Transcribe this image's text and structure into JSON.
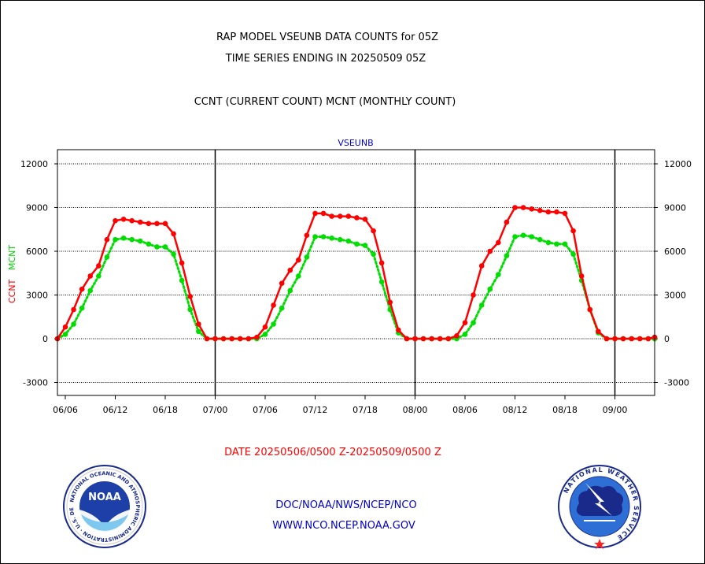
{
  "header": {
    "title_line1": "RAP MODEL VSEUNB DATA COUNTS for 05Z",
    "title_line2": "TIME SERIES ENDING IN 20250509 05Z",
    "subtitle": "CCNT (CURRENT COUNT) MCNT (MONTHLY COUNT)"
  },
  "footer": {
    "date_range": "DATE 20250506/0500 Z-20250509/0500 Z",
    "org_path": "DOC/NOAA/NWS/NCEP/NCO",
    "website": "WWW.NCO.NCEP.NOAA.GOV"
  },
  "logos": {
    "noaa": {
      "center_text": "NOAA",
      "ring_text": "NATIONAL OCEANIC AND ATMOSPHERIC ADMINISTRATION · U.S. DEPARTMENT OF COMMERCE"
    },
    "nws": {
      "ring_text": "NATIONAL WEATHER SERVICE"
    }
  },
  "chart_data": {
    "type": "line",
    "title": "VSEUNB",
    "ylabel_series1": "CCNT",
    "ylabel_series2": "MCNT",
    "ylim": [
      -3800,
      13000
    ],
    "yticks": [
      -3000,
      0,
      3000,
      6000,
      9000,
      12000
    ],
    "ytick_labels": [
      "-3000",
      "0",
      "3000",
      "6000",
      "9000",
      "12000"
    ],
    "xlim": [
      0,
      72
    ],
    "xticks": [
      {
        "x": 0,
        "label": "06/06"
      },
      {
        "x": 6,
        "label": "06/12"
      },
      {
        "x": 12,
        "label": "06/18"
      },
      {
        "x": 18,
        "label": "07/00"
      },
      {
        "x": 24,
        "label": "07/06"
      },
      {
        "x": 30,
        "label": "07/12"
      },
      {
        "x": 36,
        "label": "07/18"
      },
      {
        "x": 42,
        "label": "08/00"
      },
      {
        "x": 48,
        "label": "08/06"
      },
      {
        "x": 54,
        "label": "08/12"
      },
      {
        "x": 60,
        "label": "08/18"
      },
      {
        "x": 66,
        "label": "09/00"
      }
    ],
    "day_dividers": [
      18,
      42,
      66
    ],
    "grid": true,
    "series": [
      {
        "name": "CCNT",
        "color": "#ff0000",
        "style": "solid",
        "x": [
          -1,
          0,
          1,
          2,
          3,
          4,
          5,
          6,
          7,
          8,
          9,
          10,
          11,
          12,
          13,
          14,
          15,
          16,
          17,
          18,
          19,
          20,
          21,
          22,
          23,
          24,
          25,
          26,
          27,
          28,
          29,
          30,
          31,
          32,
          33,
          34,
          35,
          36,
          37,
          38,
          39,
          40,
          41,
          42,
          43,
          44,
          45,
          46,
          47,
          48,
          49,
          50,
          51,
          52,
          53,
          54,
          55,
          56,
          57,
          58,
          59,
          60,
          61,
          62,
          63,
          64,
          65,
          66,
          67,
          68,
          69,
          70,
          71,
          72
        ],
        "values": [
          0,
          800,
          2000,
          3400,
          4300,
          5000,
          6800,
          8100,
          8200,
          8100,
          8000,
          7900,
          7900,
          7900,
          7200,
          5200,
          2900,
          1000,
          0,
          0,
          0,
          0,
          0,
          0,
          100,
          800,
          2300,
          3800,
          4700,
          5400,
          7100,
          8600,
          8600,
          8400,
          8400,
          8400,
          8300,
          8200,
          7400,
          5200,
          2500,
          600,
          0,
          0,
          0,
          0,
          0,
          0,
          200,
          1100,
          3000,
          5000,
          6000,
          6600,
          8000,
          9000,
          9000,
          8900,
          8800,
          8700,
          8700,
          8600,
          7400,
          4300,
          2000,
          500,
          0,
          0,
          0,
          0,
          0,
          0,
          100,
          100
        ]
      },
      {
        "name": "MCNT",
        "color": "#00dd00",
        "style": "dotted",
        "x": [
          -1,
          0,
          1,
          2,
          3,
          4,
          5,
          6,
          7,
          8,
          9,
          10,
          11,
          12,
          13,
          14,
          15,
          16,
          17,
          18,
          19,
          20,
          21,
          22,
          23,
          24,
          25,
          26,
          27,
          28,
          29,
          30,
          31,
          32,
          33,
          34,
          35,
          36,
          37,
          38,
          39,
          40,
          41,
          42,
          43,
          44,
          45,
          46,
          47,
          48,
          49,
          50,
          51,
          52,
          53,
          54,
          55,
          56,
          57,
          58,
          59,
          60,
          61,
          62,
          63,
          64,
          65,
          66,
          67,
          68,
          69,
          70,
          71,
          72
        ],
        "values": [
          0,
          300,
          1000,
          2100,
          3300,
          4300,
          5600,
          6800,
          6900,
          6800,
          6700,
          6500,
          6300,
          6300,
          5800,
          4000,
          2000,
          500,
          0,
          0,
          0,
          0,
          0,
          0,
          0,
          300,
          1000,
          2100,
          3300,
          4300,
          5600,
          7000,
          7000,
          6900,
          6800,
          6700,
          6500,
          6400,
          5800,
          3900,
          2000,
          400,
          0,
          0,
          0,
          0,
          0,
          0,
          0,
          300,
          1100,
          2300,
          3400,
          4400,
          5700,
          7000,
          7100,
          7000,
          6800,
          6600,
          6500,
          6500,
          5800,
          4000,
          2000,
          400,
          0,
          0,
          0,
          0,
          0,
          0,
          0,
          0
        ]
      }
    ]
  }
}
